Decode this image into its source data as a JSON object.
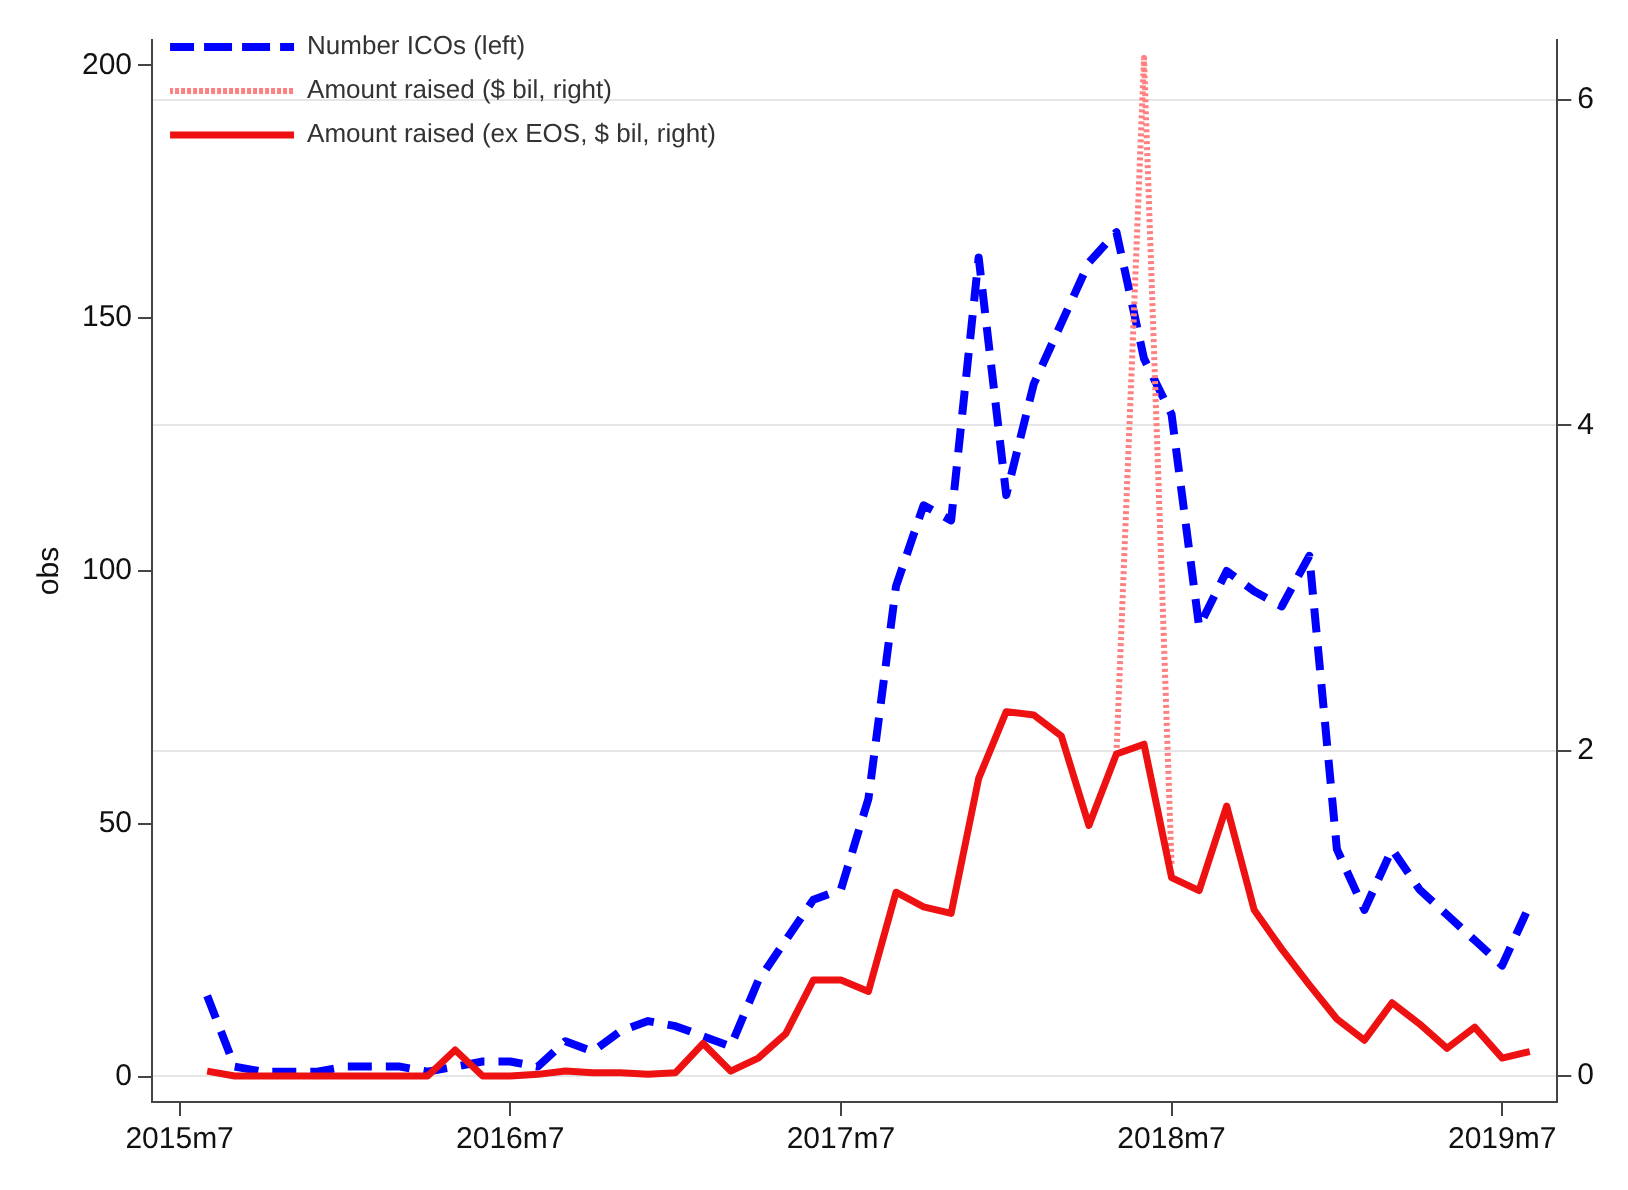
{
  "chart_data": {
    "type": "line",
    "ylabel": "obs",
    "x": [
      "2015-08",
      "2015-09",
      "2015-10",
      "2015-11",
      "2015-12",
      "2016-01",
      "2016-02",
      "2016-03",
      "2016-04",
      "2016-05",
      "2016-06",
      "2016-07",
      "2016-08",
      "2016-09",
      "2016-10",
      "2016-11",
      "2016-12",
      "2017-01",
      "2017-02",
      "2017-03",
      "2017-04",
      "2017-05",
      "2017-06",
      "2017-07",
      "2017-08",
      "2017-09",
      "2017-10",
      "2017-11",
      "2017-12",
      "2018-01",
      "2018-02",
      "2018-03",
      "2018-04",
      "2018-05",
      "2018-06",
      "2018-07",
      "2018-08",
      "2018-09",
      "2018-10",
      "2018-11",
      "2018-12",
      "2019-01",
      "2019-02",
      "2019-03",
      "2019-04",
      "2019-05",
      "2019-06",
      "2019-07",
      "2019-08"
    ],
    "series": [
      {
        "name": "Number ICOs (left)",
        "color": "#0000ff",
        "line_style": "dashed",
        "axis": "y",
        "values": [
          16,
          2,
          1,
          1,
          1,
          2,
          2,
          2,
          1,
          2,
          3,
          3,
          2,
          7,
          5,
          9,
          11,
          10,
          8,
          6,
          19,
          27,
          35,
          37,
          55,
          97,
          113,
          110,
          162,
          115,
          137,
          149,
          161,
          167,
          142,
          131,
          89,
          100,
          96,
          93,
          103,
          45,
          33,
          45,
          37,
          32,
          27,
          22,
          34
        ]
      },
      {
        "name": "Amount raised ($ bil, right)",
        "color": "#ff8080",
        "line_style": "dotted",
        "axis": "y2",
        "values": [
          null,
          null,
          null,
          null,
          null,
          null,
          null,
          null,
          null,
          null,
          null,
          null,
          null,
          null,
          null,
          null,
          null,
          null,
          null,
          null,
          null,
          null,
          null,
          null,
          null,
          null,
          null,
          null,
          null,
          null,
          null,
          null,
          null,
          1.98,
          6.26,
          1.3,
          null,
          null,
          null,
          null,
          null,
          null,
          null,
          null,
          null,
          null,
          null,
          null,
          null
        ]
      },
      {
        "name": "Amount raised (ex EOS, $ bil, right)",
        "color": "#ee1111",
        "line_style": "solid",
        "axis": "y2",
        "values": [
          0.03,
          0,
          0,
          0,
          0,
          0,
          0,
          0,
          0,
          0.16,
          0,
          0,
          0.01,
          0.03,
          0.02,
          0.02,
          0.01,
          0.02,
          0.2,
          0.03,
          0.11,
          0.26,
          0.59,
          0.59,
          0.52,
          1.13,
          1.04,
          1.0,
          1.83,
          2.24,
          2.22,
          2.09,
          1.54,
          1.98,
          2.04,
          1.22,
          1.14,
          1.66,
          1.02,
          0.78,
          0.56,
          0.35,
          0.22,
          0.45,
          0.32,
          0.17,
          0.3,
          0.11,
          0.15
        ]
      }
    ],
    "xlim": [
      "2015-06",
      "2019-09"
    ],
    "xticks": [
      {
        "value": "2015-07",
        "label": "2015m7"
      },
      {
        "value": "2016-07",
        "label": "2016m7"
      },
      {
        "value": "2017-07",
        "label": "2017m7"
      },
      {
        "value": "2018-07",
        "label": "2018m7"
      },
      {
        "value": "2019-07",
        "label": "2019m7"
      }
    ],
    "ylim": [
      -5,
      205
    ],
    "yticks": [
      0,
      50,
      100,
      150,
      200
    ],
    "y2lim": [
      -0.16,
      6.37
    ],
    "y2ticks": [
      0,
      2,
      4,
      6
    ],
    "grid": "y",
    "legend": "top left",
    "marker": "none"
  }
}
